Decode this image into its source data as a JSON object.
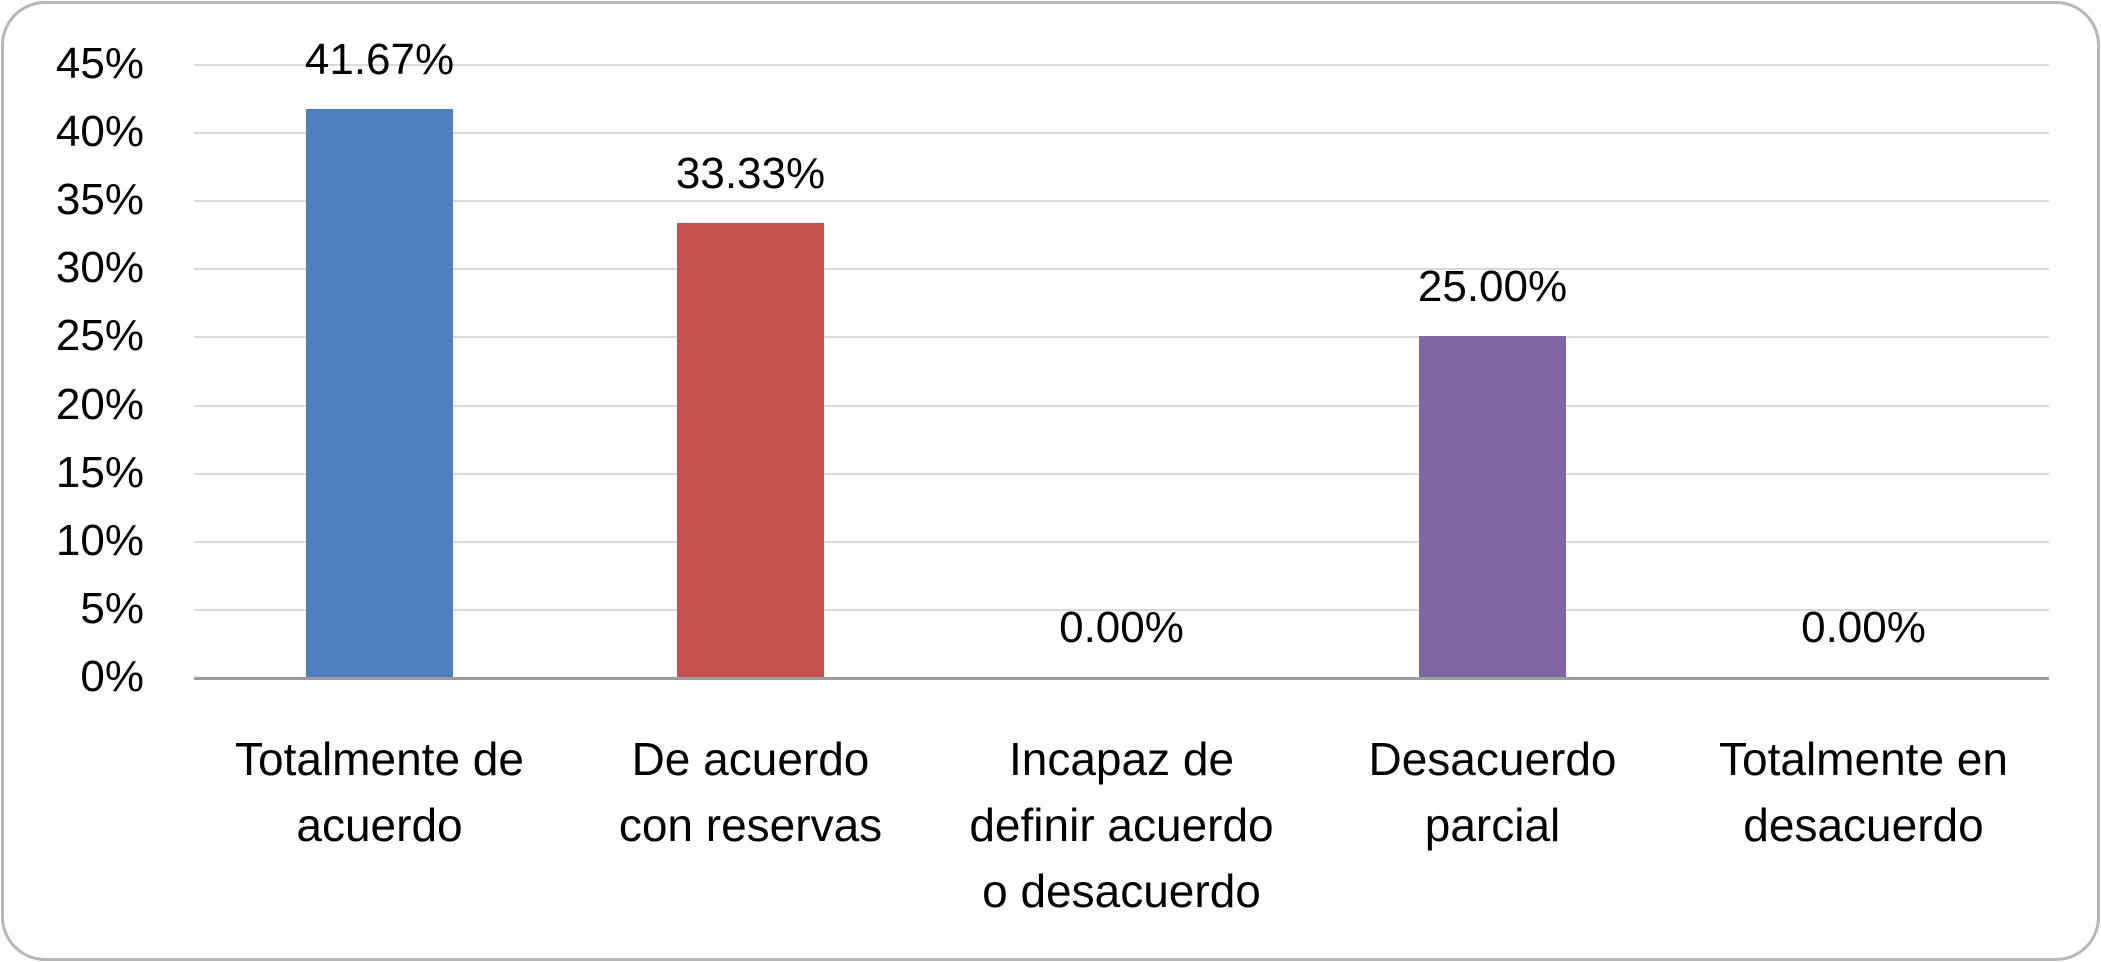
{
  "chart_data": {
    "type": "bar",
    "title": "",
    "xlabel": "",
    "ylabel": "",
    "legend": false,
    "grid": true,
    "points": [
      {
        "category": "Totalmente de\nacuerdo",
        "value": 41.67,
        "label": "41.67%",
        "color": "#4d80bc"
      },
      {
        "category": "De acuerdo\ncon reservas",
        "value": 33.33,
        "label": "33.33%",
        "color": "#c5504f"
      },
      {
        "category": "Incapaz de\ndefinir acuerdo\no desacuerdo",
        "value": 0,
        "label": "0.00%",
        "color": ""
      },
      {
        "category": "Desacuerdo\nparcial",
        "value": 25,
        "label": "25.00%",
        "color": "#8065a3"
      },
      {
        "category": "Totalmente en\ndesacuerdo",
        "value": 0,
        "label": "0.00%",
        "color": ""
      }
    ],
    "y_axis": {
      "min": 0,
      "max": 45,
      "step": 5,
      "tick_labels": [
        "0%",
        "5%",
        "10%",
        "15%",
        "20%",
        "25%",
        "30%",
        "35%",
        "40%",
        "45%"
      ]
    }
  },
  "style": {
    "gridline_color": "#d9d9d9",
    "axis_line_color": "#9c9c9c",
    "frame_border_color": "#b7b7b7",
    "text_color": "#000000"
  }
}
